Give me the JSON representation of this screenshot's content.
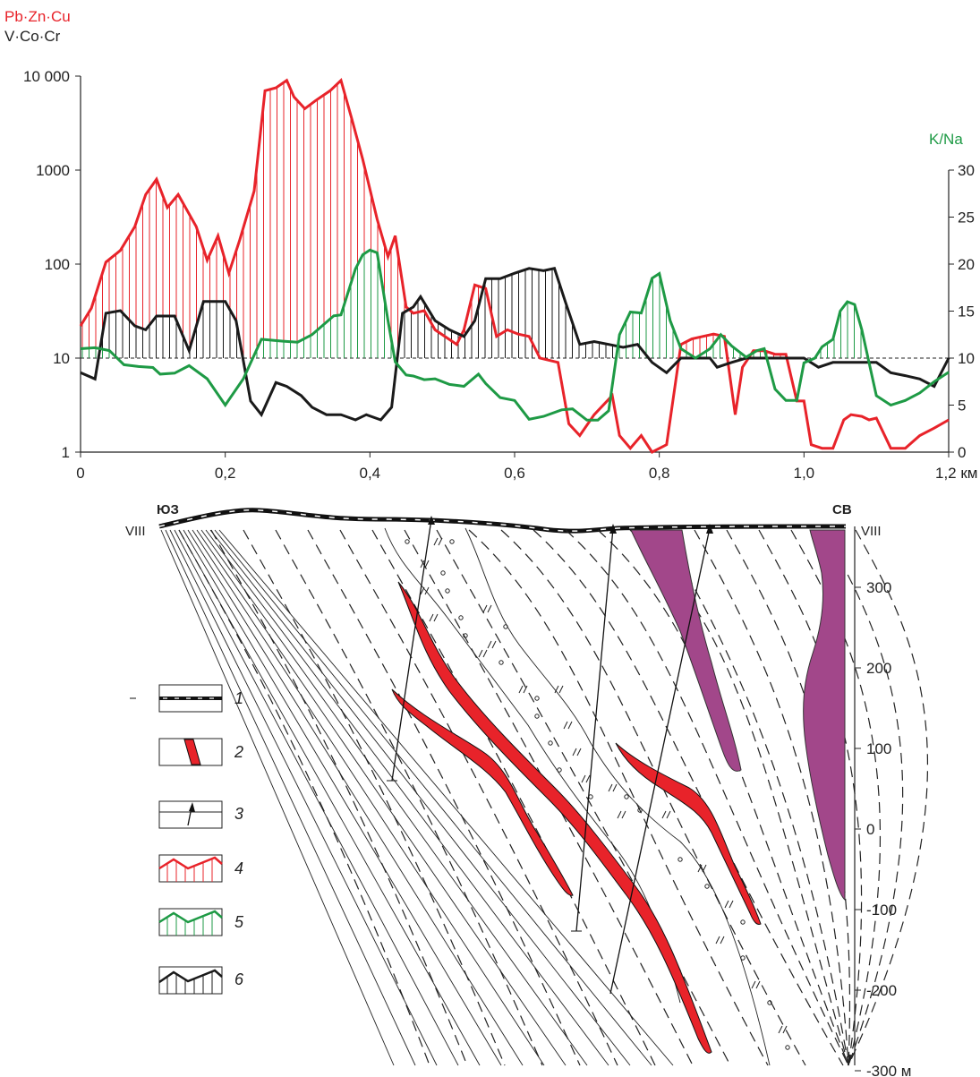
{
  "chart_data": {
    "type": "line",
    "left_axis": {
      "title_primary": "Pb·Zn·Cu",
      "title_secondary": "V·Co·Cr",
      "scale": "log",
      "ylim": [
        1,
        10000
      ],
      "ticks": [
        1,
        10,
        100,
        1000,
        10000
      ],
      "tick_labels": [
        "1",
        "10",
        "100",
        "1000",
        "10 000"
      ]
    },
    "right_axis": {
      "title": "K/Na",
      "ylim": [
        0,
        30
      ],
      "ticks": [
        0,
        5,
        10,
        15,
        20,
        25,
        30
      ],
      "tick_labels": [
        "0",
        "5",
        "10",
        "15",
        "20",
        "25",
        "30"
      ]
    },
    "x_axis": {
      "xlim": [
        0,
        1.2
      ],
      "ticks": [
        0,
        0.2,
        0.4,
        0.6,
        0.8,
        1.0,
        1.2
      ],
      "tick_labels": [
        "0",
        "0,2",
        "0,4",
        "0,6",
        "0,8",
        "1,0",
        "1,2 км"
      ]
    },
    "baseline": {
      "left_value": 10,
      "right_value": 10,
      "style": "dashed"
    },
    "series": [
      {
        "name": "Pb·Zn·Cu",
        "color": "#e8232a",
        "axis": "left",
        "x": [
          0,
          0.015,
          0.035,
          0.055,
          0.075,
          0.09,
          0.105,
          0.12,
          0.135,
          0.16,
          0.175,
          0.19,
          0.205,
          0.22,
          0.24,
          0.255,
          0.27,
          0.285,
          0.295,
          0.31,
          0.325,
          0.345,
          0.36,
          0.375,
          0.39,
          0.41,
          0.425,
          0.435,
          0.45,
          0.46,
          0.475,
          0.49,
          0.52,
          0.53,
          0.545,
          0.56,
          0.575,
          0.59,
          0.605,
          0.62,
          0.635,
          0.66,
          0.675,
          0.69,
          0.71,
          0.735,
          0.745,
          0.76,
          0.775,
          0.79,
          0.81,
          0.83,
          0.845,
          0.86,
          0.875,
          0.89,
          0.905,
          0.915,
          0.93,
          0.945,
          0.96,
          0.975,
          0.99,
          1.0,
          1.01,
          1.025,
          1.04,
          1.055,
          1.065,
          1.08,
          1.09,
          1.1,
          1.12,
          1.14,
          1.16,
          1.18,
          1.2
        ],
        "values": [
          22,
          34,
          105,
          140,
          250,
          550,
          800,
          400,
          550,
          250,
          110,
          200,
          80,
          180,
          600,
          7000,
          7500,
          9000,
          6000,
          4500,
          5500,
          7000,
          9000,
          3500,
          1300,
          300,
          120,
          200,
          35,
          30,
          32,
          20,
          14,
          20,
          60,
          55,
          17,
          20,
          18,
          17,
          10,
          9,
          2,
          1.5,
          2.5,
          4,
          1.5,
          1.1,
          1.5,
          1,
          1.2,
          14,
          16,
          17,
          18,
          17,
          2.5,
          8,
          12,
          12,
          11,
          11,
          3.5,
          3.5,
          1.2,
          1.1,
          1.1,
          2.2,
          2.5,
          2.4,
          2.2,
          2.3,
          1.1,
          1.1,
          1.5,
          1.8,
          2.2
        ]
      },
      {
        "name": "V·Co·Cr",
        "color": "#1a1a1a",
        "axis": "left",
        "x": [
          0,
          0.02,
          0.035,
          0.055,
          0.075,
          0.09,
          0.105,
          0.13,
          0.15,
          0.17,
          0.2,
          0.215,
          0.235,
          0.25,
          0.27,
          0.285,
          0.305,
          0.32,
          0.34,
          0.36,
          0.38,
          0.395,
          0.415,
          0.43,
          0.445,
          0.46,
          0.47,
          0.49,
          0.51,
          0.53,
          0.545,
          0.56,
          0.58,
          0.6,
          0.62,
          0.64,
          0.655,
          0.67,
          0.69,
          0.71,
          0.73,
          0.75,
          0.77,
          0.79,
          0.81,
          0.83,
          0.85,
          0.87,
          0.88,
          0.9,
          0.92,
          0.94,
          0.96,
          0.98,
          1.0,
          1.02,
          1.04,
          1.06,
          1.08,
          1.1,
          1.12,
          1.14,
          1.16,
          1.18,
          1.2
        ],
        "values": [
          7,
          6,
          30,
          32,
          22,
          20,
          28,
          28,
          12,
          40,
          40,
          25,
          3.5,
          2.5,
          5.5,
          5,
          4,
          3,
          2.5,
          2.5,
          2.2,
          2.5,
          2.2,
          3,
          30,
          35,
          45,
          25,
          20,
          17,
          25,
          70,
          70,
          80,
          90,
          85,
          90,
          40,
          14,
          15,
          14,
          13,
          14,
          9,
          7,
          10,
          10,
          10,
          8,
          9,
          10,
          10,
          10,
          10,
          10,
          8,
          9,
          9,
          9,
          9,
          7,
          6.5,
          6,
          5,
          10
        ]
      },
      {
        "name": "K/Na",
        "color": "#1e9a45",
        "axis": "right",
        "x": [
          0,
          0.02,
          0.04,
          0.06,
          0.08,
          0.1,
          0.11,
          0.13,
          0.15,
          0.175,
          0.2,
          0.225,
          0.25,
          0.28,
          0.3,
          0.32,
          0.35,
          0.36,
          0.38,
          0.39,
          0.4,
          0.41,
          0.425,
          0.435,
          0.45,
          0.46,
          0.475,
          0.49,
          0.51,
          0.53,
          0.55,
          0.56,
          0.58,
          0.6,
          0.62,
          0.64,
          0.665,
          0.68,
          0.7,
          0.715,
          0.73,
          0.745,
          0.76,
          0.775,
          0.79,
          0.8,
          0.815,
          0.83,
          0.85,
          0.87,
          0.885,
          0.9,
          0.92,
          0.935,
          0.945,
          0.96,
          0.975,
          0.99,
          1.0,
          1.015,
          1.025,
          1.04,
          1.05,
          1.06,
          1.07,
          1.08,
          1.09,
          1.1,
          1.12,
          1.14,
          1.16,
          1.18,
          1.2
        ],
        "values": [
          11,
          11.1,
          10.8,
          9.3,
          9.1,
          9,
          8.3,
          8.4,
          9.2,
          7.8,
          5,
          7.8,
          12,
          11.8,
          11.7,
          12.5,
          14.5,
          14.6,
          19.5,
          21,
          21.5,
          21.2,
          14,
          9.6,
          8.2,
          8.1,
          7.7,
          7.8,
          7.2,
          7,
          8.3,
          7.3,
          5.8,
          5.5,
          3.5,
          3.8,
          4.5,
          4.6,
          3.4,
          3.4,
          4.4,
          12.5,
          14.9,
          14.8,
          18.5,
          19,
          14,
          11,
          10,
          11,
          12.5,
          11.3,
          10.1,
          10.8,
          11,
          6.7,
          5.5,
          5.5,
          9.5,
          10,
          11.2,
          12,
          15,
          16,
          15.7,
          13,
          9.5,
          6,
          5,
          5.5,
          6.3,
          7.5,
          8.5
        ]
      }
    ]
  },
  "section": {
    "label_sw": "ЮЗ",
    "label_ne": "СВ",
    "label_left_horizon": "VIII",
    "label_right_horizon": "VIII",
    "depth_axis": {
      "ticks": [
        300,
        200,
        100,
        0,
        -100,
        -200,
        -300
      ],
      "tick_labels": [
        "300",
        "200",
        "100",
        "0",
        "-100",
        "-200",
        "-300 м"
      ]
    }
  },
  "legend": {
    "items": [
      {
        "number": "1",
        "icon": "surface-cover-icon"
      },
      {
        "number": "2",
        "icon": "ore-body-icon"
      },
      {
        "number": "3",
        "icon": "borehole-icon"
      },
      {
        "number": "4",
        "icon": "red-profile-icon",
        "color": "#e8232a"
      },
      {
        "number": "5",
        "icon": "green-profile-icon",
        "color": "#1e9a45"
      },
      {
        "number": "6",
        "icon": "black-profile-icon",
        "color": "#1a1a1a"
      }
    ]
  },
  "colors": {
    "red": "#e8232a",
    "green": "#1e9a45",
    "black": "#1a1a1a",
    "intrusion": "#a2478a"
  }
}
